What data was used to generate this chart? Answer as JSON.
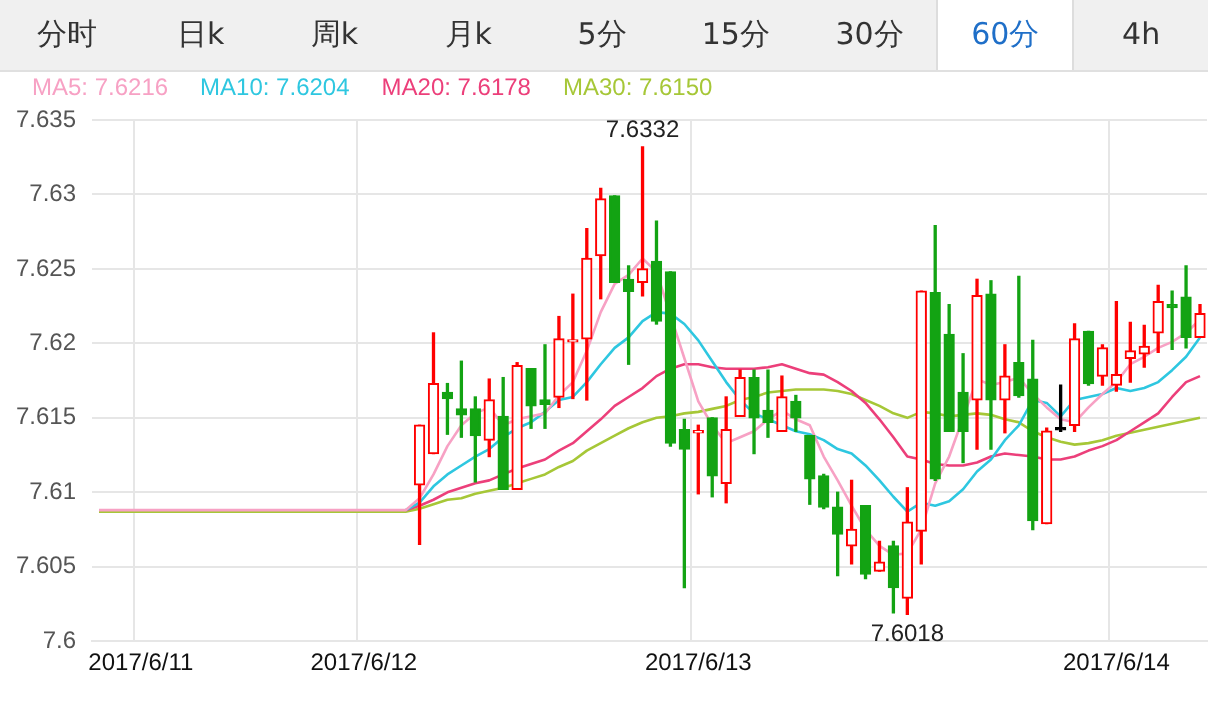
{
  "chart_data": {
    "type": "candlestick",
    "annotations": [
      "分时",
      "日k",
      "周k",
      "月k",
      "5分",
      "15分",
      "30分",
      "60分",
      "4h",
      {
        "text": "7.6332",
        "y": 7.6332
      },
      {
        "text": "7.6018",
        "y": 7.6018
      }
    ],
    "categories": [
      null,
      null,
      null,
      "2017/6/11",
      null,
      null,
      null,
      null,
      null,
      null,
      null,
      null,
      null,
      null,
      null,
      null,
      null,
      null,
      null,
      "2017/6/12",
      null,
      null,
      null,
      null,
      null,
      null,
      null,
      null,
      null,
      null,
      null,
      null,
      null,
      null,
      null,
      null,
      null,
      null,
      null,
      null,
      null,
      null,
      null,
      "2017/6/13",
      null,
      null,
      null,
      null,
      null,
      null,
      null,
      null,
      null,
      null,
      null,
      null,
      null,
      null,
      null,
      null,
      null,
      null,
      null,
      null,
      null,
      null,
      null,
      null,
      null,
      null,
      null,
      null,
      null,
      "2017/6/14",
      null,
      null,
      null,
      null,
      null,
      null
    ],
    "ohlc": [
      null,
      null,
      null,
      null,
      null,
      null,
      null,
      null,
      null,
      null,
      null,
      null,
      null,
      null,
      null,
      null,
      null,
      null,
      null,
      null,
      null,
      null,
      null,
      [
        7.6105,
        7.6145,
        7.6065,
        7.6145
      ],
      [
        7.6126,
        7.6207,
        7.6126,
        7.6173
      ],
      [
        7.6167,
        7.6173,
        7.6139,
        7.6163
      ],
      [
        7.6156,
        7.6188,
        7.6137,
        7.6152
      ],
      [
        7.6156,
        7.6164,
        7.6107,
        7.6138
      ],
      [
        7.6135,
        7.6176,
        7.6124,
        7.6162
      ],
      [
        7.6151,
        7.6177,
        7.6102,
        7.6102
      ],
      [
        7.6102,
        7.6187,
        7.6102,
        7.6185
      ],
      [
        7.6183,
        7.6183,
        7.6143,
        7.6158
      ],
      [
        7.6162,
        7.6199,
        7.6143,
        7.6159
      ],
      [
        7.6164,
        7.6218,
        7.6157,
        7.6203
      ],
      [
        7.6201,
        7.6233,
        7.6163,
        7.6202
      ],
      [
        7.6203,
        7.6277,
        7.6162,
        7.6257
      ],
      [
        7.6259,
        7.6304,
        7.623,
        7.6297
      ],
      [
        7.6299,
        7.6299,
        7.6241,
        7.6241
      ],
      [
        7.6243,
        7.6252,
        7.6186,
        7.6235
      ],
      [
        7.6241,
        7.6332,
        7.6232,
        7.625
      ],
      [
        7.6255,
        7.6282,
        7.6213,
        7.6215
      ],
      [
        7.6248,
        7.6248,
        7.6131,
        7.6133
      ],
      [
        7.6142,
        7.6149,
        7.6036,
        7.6129
      ],
      [
        7.614,
        7.6145,
        7.6099,
        7.6141
      ],
      [
        7.615,
        7.615,
        7.6097,
        7.6111
      ],
      [
        7.6106,
        7.6164,
        7.6093,
        7.6142
      ],
      [
        7.6151,
        7.6182,
        7.6151,
        7.6177
      ],
      [
        7.6177,
        7.6182,
        7.6126,
        7.615
      ],
      [
        7.6155,
        7.6182,
        7.6137,
        7.6147
      ],
      [
        7.6141,
        7.6178,
        7.6141,
        7.6164
      ],
      [
        7.6161,
        7.6165,
        7.6141,
        7.615
      ],
      [
        7.6138,
        7.6138,
        7.6092,
        7.6109
      ],
      [
        7.6111,
        7.6112,
        7.6089,
        7.609
      ],
      [
        7.609,
        7.61,
        7.6044,
        7.6072
      ],
      [
        7.6064,
        7.6108,
        7.6052,
        7.6075
      ],
      [
        7.6091,
        7.6091,
        7.6042,
        7.6045
      ],
      [
        7.6047,
        7.6067,
        7.6047,
        7.6053
      ],
      [
        7.6064,
        7.6067,
        7.6019,
        7.6036
      ],
      [
        7.6029,
        7.6103,
        7.6018,
        7.608
      ],
      [
        7.6074,
        7.6235,
        7.6052,
        7.6235
      ],
      [
        7.6234,
        7.6279,
        7.6108,
        7.6109
      ],
      [
        7.6206,
        7.6226,
        7.6141,
        7.6141
      ],
      [
        7.6167,
        7.6193,
        7.612,
        7.6141
      ],
      [
        7.6162,
        7.6243,
        7.6129,
        7.6232
      ],
      [
        7.6233,
        7.6242,
        7.6129,
        7.6162
      ],
      [
        7.6162,
        7.6199,
        7.614,
        7.6178
      ],
      [
        7.6187,
        7.6245,
        7.6164,
        7.6165
      ],
      [
        7.6176,
        7.6202,
        7.6075,
        7.6081
      ],
      [
        7.6079,
        7.6143,
        7.6079,
        7.6141
      ],
      [
        7.6142,
        7.6172,
        7.6141,
        7.6142
      ],
      [
        7.6145,
        7.6213,
        7.6141,
        7.6203
      ],
      [
        7.6208,
        7.6208,
        7.6172,
        7.6173
      ],
      [
        7.6178,
        7.6199,
        7.6172,
        7.6197
      ],
      [
        7.6172,
        7.6228,
        7.6168,
        7.6179
      ],
      [
        7.619,
        7.6214,
        7.6174,
        7.6195
      ],
      [
        7.6193,
        7.6212,
        7.6184,
        7.6198
      ],
      [
        7.6207,
        7.6239,
        7.6194,
        7.6228
      ],
      [
        7.6226,
        7.6235,
        7.6196,
        7.6224
      ],
      [
        7.6231,
        7.6252,
        7.6197,
        7.6204
      ],
      [
        7.6204,
        7.6226,
        7.6204,
        7.622
      ]
    ],
    "colors": [
      null,
      null,
      null,
      null,
      null,
      null,
      null,
      null,
      null,
      null,
      null,
      null,
      null,
      null,
      null,
      null,
      null,
      null,
      null,
      null,
      null,
      null,
      null,
      "#ff0000",
      "#ff0000",
      "#13a313",
      "#13a313",
      "#13a313",
      "#ff0000",
      "#13a313",
      "#ff0000",
      "#13a313",
      "#13a313",
      "#ff0000",
      "#ff0000",
      "#ff0000",
      "#ff0000",
      "#13a313",
      "#13a313",
      "#ff0000",
      "#13a313",
      "#13a313",
      "#13a313",
      "#ff0000",
      "#13a313",
      "#ff0000",
      "#ff0000",
      "#13a313",
      "#13a313",
      "#ff0000",
      "#13a313",
      "#13a313",
      "#13a313",
      "#13a313",
      "#ff0000",
      "#13a313",
      "#ff0000",
      "#13a313",
      "#ff0000",
      "#ff0000",
      "#13a313",
      "#13a313",
      "#13a313",
      "#ff0000",
      "#13a313",
      "#ff0000",
      "#13a313",
      "#13a313",
      "#ff0000",
      "#000000",
      "#ff0000",
      "#13a313",
      "#ff0000",
      "#ff0000",
      "#ff0000",
      "#ff0000",
      "#ff0000",
      "#13a313",
      "#13a313",
      "#ff0000"
    ],
    "series": [
      {
        "name": "MA5: 7.6216",
        "type": "line",
        "color": "#f7a1c4",
        "values": [
          7.6088,
          7.6088,
          7.6088,
          7.6088,
          7.6088,
          7.6088,
          7.6088,
          7.6088,
          7.6088,
          7.6088,
          7.6088,
          7.6088,
          7.6088,
          7.6088,
          7.6088,
          7.6088,
          7.6088,
          7.6088,
          7.6088,
          7.6088,
          7.6088,
          7.6088,
          7.6088,
          7.6096,
          7.6112,
          7.6131,
          7.6145,
          7.6153,
          7.6157,
          7.6145,
          7.6149,
          7.6151,
          7.6153,
          7.6165,
          7.6174,
          7.6195,
          7.6221,
          7.624,
          7.6246,
          7.6257,
          7.6248,
          null,
          7.619,
          7.6161,
          7.6145,
          7.6133,
          7.6137,
          7.6141,
          7.6149,
          7.6155,
          7.6149,
          7.6145,
          7.6124,
          7.6108,
          7.6091,
          7.6075,
          7.6064,
          7.6058,
          7.6059,
          7.6075,
          7.6106,
          7.6124,
          null,
          7.6176,
          7.6172,
          7.6174,
          7.6177,
          7.6166,
          7.6157,
          7.6149,
          7.6147,
          7.6157,
          7.6166,
          7.6174,
          7.6186,
          7.6191,
          7.6197,
          7.6201,
          7.6207,
          7.6216
        ]
      },
      {
        "name": "MA10: 7.6204",
        "type": "line",
        "color": "#2ec7e0",
        "values": [
          null,
          null,
          null,
          null,
          null,
          null,
          null,
          null,
          null,
          null,
          null,
          null,
          null,
          null,
          null,
          null,
          null,
          null,
          null,
          null,
          null,
          null,
          7.6088,
          7.6093,
          7.6104,
          7.6112,
          7.6118,
          7.6124,
          7.6129,
          7.6137,
          7.6143,
          7.6147,
          7.6154,
          7.6162,
          7.6164,
          7.6174,
          7.6186,
          7.6197,
          7.6204,
          7.6215,
          7.6221,
          7.622,
          7.6213,
          7.6202,
          7.6188,
          7.6174,
          7.6162,
          7.6153,
          7.6149,
          7.6145,
          7.6141,
          7.6139,
          7.6135,
          7.6129,
          7.6126,
          7.6118,
          7.6108,
          7.6097,
          7.6087,
          7.6093,
          7.6091,
          7.6094,
          7.6102,
          7.6114,
          7.6122,
          7.6135,
          7.6145,
          7.6162,
          7.616,
          7.6151,
          7.6162,
          7.6164,
          7.6166,
          7.617,
          7.6168,
          7.617,
          7.6174,
          7.6182,
          7.6191,
          7.6204
        ]
      },
      {
        "name": "MA20: 7.6178",
        "type": "line",
        "color": "#ec3f7a",
        "values": [
          null,
          null,
          null,
          null,
          null,
          null,
          null,
          null,
          null,
          null,
          null,
          null,
          null,
          null,
          null,
          null,
          null,
          null,
          null,
          null,
          null,
          null,
          7.6088,
          7.6091,
          7.6095,
          7.61,
          7.6103,
          7.6106,
          7.6108,
          7.6112,
          7.6116,
          7.6119,
          7.6122,
          7.6128,
          7.6133,
          7.6141,
          7.6149,
          7.6158,
          7.6164,
          7.617,
          7.6178,
          7.6183,
          7.6186,
          7.6186,
          7.6184,
          7.6183,
          7.6183,
          7.6183,
          7.6184,
          7.6186,
          7.6183,
          7.618,
          7.6179,
          7.6174,
          7.6168,
          7.616,
          7.6149,
          7.6137,
          7.6124,
          7.6122,
          7.6119,
          7.6118,
          7.6118,
          7.612,
          7.6124,
          7.6126,
          7.6125,
          7.6124,
          7.6122,
          7.6122,
          7.6124,
          7.6128,
          7.6131,
          7.6135,
          7.6141,
          7.6147,
          7.6153,
          7.6164,
          7.6174,
          7.6178
        ]
      },
      {
        "name": "MA30: 7.6150",
        "type": "line",
        "color": "#a6c737",
        "values": [
          7.6087,
          7.6087,
          7.6087,
          7.6087,
          7.6087,
          7.6087,
          7.6087,
          7.6087,
          7.6087,
          7.6087,
          7.6087,
          7.6087,
          7.6087,
          7.6087,
          7.6087,
          7.6087,
          7.6087,
          7.6087,
          7.6087,
          7.6087,
          7.6087,
          7.6087,
          7.6087,
          7.6089,
          7.6092,
          7.6095,
          7.6096,
          7.6099,
          7.6101,
          7.6103,
          7.6106,
          7.6109,
          7.6112,
          7.6117,
          7.6121,
          7.6128,
          7.6133,
          7.6138,
          7.6143,
          7.6147,
          7.615,
          7.6151,
          7.6153,
          7.6154,
          7.6156,
          7.6158,
          7.6162,
          7.6164,
          7.6167,
          7.6168,
          7.6169,
          7.6169,
          7.6169,
          7.6168,
          7.6166,
          7.6162,
          7.6158,
          7.6153,
          7.615,
          7.6154,
          7.6153,
          7.6151,
          7.6152,
          7.6153,
          7.6152,
          7.6149,
          7.6147,
          7.6141,
          7.6137,
          7.6134,
          7.6132,
          7.6133,
          7.6135,
          7.6138,
          7.614,
          7.6142,
          7.6144,
          7.6146,
          7.6148,
          7.615
        ]
      }
    ],
    "ylim": [
      7.6,
      7.635
    ],
    "yticks": [
      7.6,
      7.605,
      7.61,
      7.615,
      7.62,
      7.625,
      7.63,
      7.635
    ],
    "grid": true,
    "legend": "top left"
  }
}
